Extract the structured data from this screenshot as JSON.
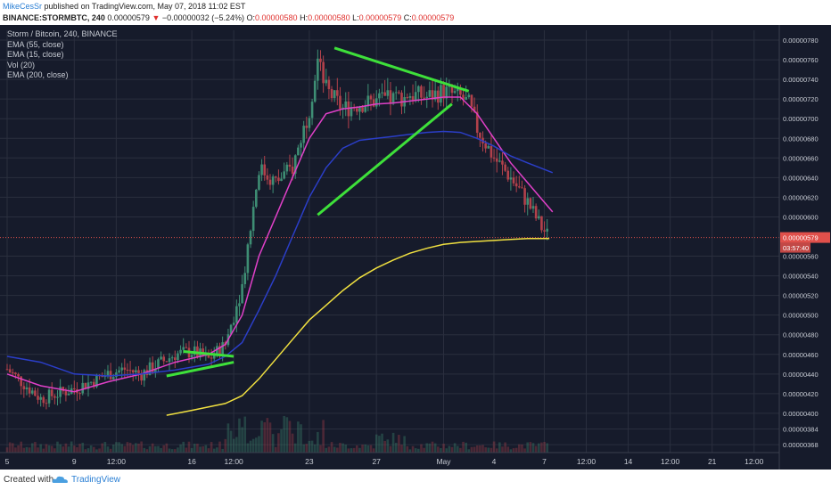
{
  "header": {
    "author": "MikeCesSr",
    "published": "published on TradingView.com, May 07, 2018 11:02 EST",
    "symbol": "BINANCE:STORMBTC, 240",
    "last": "0.00000579",
    "change": "−0.00000032 (−5.24%)",
    "open_label": "O:",
    "open": "0.00000580",
    "high_label": "H:",
    "high": "0.00000580",
    "low_label": "L:",
    "low": "0.00000579",
    "close_label": "C:",
    "close": "0.00000579"
  },
  "legend": [
    "Storm / Bitcoin, 240, BINANCE",
    "EMA (55, close)",
    "EMA (15, close)",
    "Vol (20)",
    "EMA (200, close)"
  ],
  "price_badge": {
    "price": "0.00000579",
    "countdown": "03:57:40"
  },
  "footer": {
    "created_with": "Created with",
    "brand": "TradingView"
  },
  "colors": {
    "background": "#161b2b",
    "grid": "#2a2f3e",
    "candle_up": "#3e8e74",
    "candle_down": "#b2414b",
    "ema15": "#e040c8",
    "ema55": "#2b3ec8",
    "ema200": "#f0e040",
    "trendline": "#3ee03a",
    "price_line": "#e0504b"
  },
  "chart_data": {
    "type": "candlestick",
    "y_ticks": [
      "0.00000780",
      "0.00000760",
      "0.00000740",
      "0.00000720",
      "0.00000700",
      "0.00000680",
      "0.00000660",
      "0.00000640",
      "0.00000620",
      "0.00000600",
      "0.00000560",
      "0.00000540",
      "0.00000520",
      "0.00000500",
      "0.00000480",
      "0.00000460",
      "0.00000440",
      "0.00000420",
      "0.00000400",
      "0.00000384",
      "0.00000368"
    ],
    "y_tick_values": [
      780,
      760,
      740,
      720,
      700,
      680,
      660,
      640,
      620,
      600,
      560,
      540,
      520,
      500,
      480,
      460,
      440,
      420,
      400,
      384,
      368
    ],
    "x_ticks": [
      "5",
      "9",
      "12:00",
      "16",
      "12:00",
      "23",
      "27",
      "May",
      "4",
      "7",
      "12:00",
      "14",
      "12:00",
      "21",
      "12:00"
    ],
    "x_tick_day": [
      0,
      4,
      6.5,
      11,
      13.5,
      18,
      22,
      26,
      29,
      32,
      34.5,
      37,
      39.5,
      42,
      44.5
    ],
    "ylim": [
      360,
      790
    ],
    "xlim": [
      0,
      46
    ],
    "last_price": 579,
    "price_anchors": [
      [
        0,
        445
      ],
      [
        1,
        430
      ],
      [
        2,
        415
      ],
      [
        3,
        420
      ],
      [
        4,
        425
      ],
      [
        5,
        432
      ],
      [
        6,
        440
      ],
      [
        7,
        445
      ],
      [
        8,
        440
      ],
      [
        9,
        450
      ],
      [
        10,
        460
      ],
      [
        11,
        463
      ],
      [
        12,
        455
      ],
      [
        13,
        470
      ],
      [
        14,
        530
      ],
      [
        15,
        650
      ],
      [
        16,
        635
      ],
      [
        17,
        650
      ],
      [
        18,
        710
      ],
      [
        18.5,
        760
      ],
      [
        19,
        730
      ],
      [
        20,
        710
      ],
      [
        21,
        715
      ],
      [
        22,
        718
      ],
      [
        23,
        720
      ],
      [
        24,
        725
      ],
      [
        25,
        722
      ],
      [
        26,
        728
      ],
      [
        27,
        722
      ],
      [
        27.5,
        715
      ],
      [
        28,
        690
      ],
      [
        29,
        660
      ],
      [
        30,
        640
      ],
      [
        31,
        615
      ],
      [
        31.8,
        590
      ],
      [
        32.3,
        579
      ]
    ],
    "series": [
      {
        "name": "EMA (15, close)",
        "values": [
          [
            0,
            440
          ],
          [
            2,
            428
          ],
          [
            4,
            422
          ],
          [
            6,
            432
          ],
          [
            8,
            440
          ],
          [
            10,
            452
          ],
          [
            12,
            460
          ],
          [
            13,
            470
          ],
          [
            14,
            500
          ],
          [
            15,
            560
          ],
          [
            16,
            600
          ],
          [
            17,
            640
          ],
          [
            18,
            680
          ],
          [
            19,
            705
          ],
          [
            20,
            710
          ],
          [
            21,
            712
          ],
          [
            22,
            715
          ],
          [
            23,
            716
          ],
          [
            24,
            718
          ],
          [
            25,
            720
          ],
          [
            26,
            722
          ],
          [
            27,
            722
          ],
          [
            28,
            705
          ],
          [
            29,
            680
          ],
          [
            30,
            655
          ],
          [
            31,
            635
          ],
          [
            32.5,
            605
          ]
        ]
      },
      {
        "name": "EMA (55, close)",
        "values": [
          [
            0,
            458
          ],
          [
            2,
            452
          ],
          [
            4,
            440
          ],
          [
            6,
            438
          ],
          [
            8,
            440
          ],
          [
            10,
            444
          ],
          [
            12,
            450
          ],
          [
            13,
            458
          ],
          [
            14,
            472
          ],
          [
            15,
            505
          ],
          [
            16,
            540
          ],
          [
            17,
            580
          ],
          [
            18,
            620
          ],
          [
            19,
            650
          ],
          [
            20,
            670
          ],
          [
            21,
            678
          ],
          [
            22,
            680
          ],
          [
            23,
            682
          ],
          [
            24,
            684
          ],
          [
            25,
            686
          ],
          [
            26,
            687
          ],
          [
            27,
            686
          ],
          [
            28,
            680
          ],
          [
            29,
            672
          ],
          [
            30,
            662
          ],
          [
            31,
            655
          ],
          [
            32.5,
            645
          ]
        ]
      },
      {
        "name": "EMA (200, close)",
        "values": [
          [
            9.5,
            398
          ],
          [
            11,
            403
          ],
          [
            13,
            410
          ],
          [
            14,
            418
          ],
          [
            15,
            435
          ],
          [
            16,
            455
          ],
          [
            17,
            475
          ],
          [
            18,
            495
          ],
          [
            19,
            510
          ],
          [
            20,
            525
          ],
          [
            21,
            538
          ],
          [
            22,
            548
          ],
          [
            23,
            556
          ],
          [
            24,
            563
          ],
          [
            25,
            568
          ],
          [
            26,
            572
          ],
          [
            27,
            574
          ],
          [
            28,
            575
          ],
          [
            29,
            576
          ],
          [
            30,
            577
          ],
          [
            31,
            578
          ],
          [
            32.3,
            578
          ]
        ]
      }
    ],
    "trendlines": [
      [
        [
          10.5,
          463
        ],
        [
          13.5,
          458
        ]
      ],
      [
        [
          9.5,
          438
        ],
        [
          13.5,
          452
        ]
      ],
      [
        [
          18.5,
          602
        ],
        [
          26.5,
          715
        ]
      ],
      [
        [
          19.5,
          772
        ],
        [
          27.5,
          728
        ]
      ]
    ],
    "volume_ylim": [
      0,
      100
    ]
  }
}
